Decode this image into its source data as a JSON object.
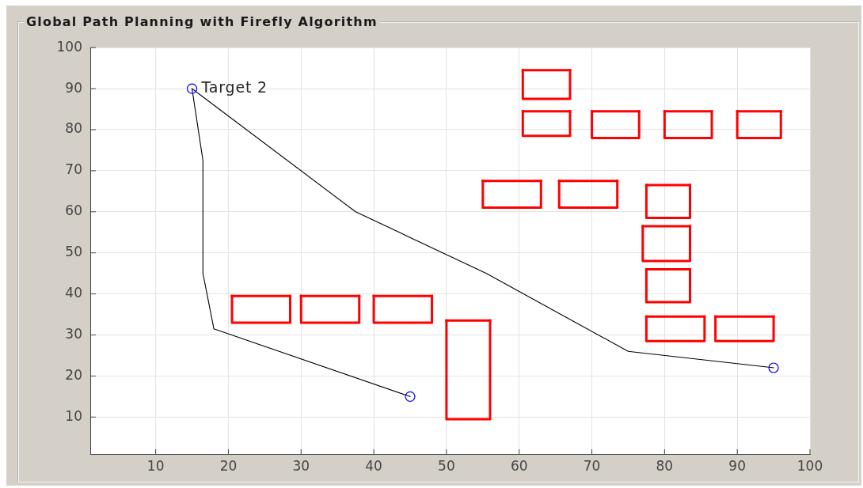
{
  "chart_data": {
    "type": "line",
    "title": "Global Path Planning with Firefly Algorithm",
    "xlim": [
      1,
      100
    ],
    "xticks": [
      10,
      20,
      30,
      40,
      50,
      60,
      70,
      80,
      90,
      100
    ],
    "ylim": [
      1,
      100
    ],
    "yticks": [
      10,
      20,
      30,
      40,
      50,
      60,
      70,
      80,
      90,
      100
    ],
    "grid": true,
    "annotations": [
      {
        "text": "Target 2",
        "x": 15,
        "y": 90
      }
    ],
    "series": [
      {
        "color": "#ff0000",
        "marker": "none",
        "x": [
          60.5,
          60.5,
          67,
          67
        ],
        "values": [
          94.5,
          87.5,
          87.5,
          94.5
        ]
      },
      {
        "color": "#ff0000",
        "marker": "none",
        "x": [
          60.5,
          67
        ],
        "values": [
          94.5,
          94.5
        ]
      },
      {
        "color": "#ff0000",
        "marker": "none",
        "x": [
          60.5,
          60.5,
          67,
          67
        ],
        "values": [
          84.5,
          78.5,
          78.5,
          84.5
        ]
      },
      {
        "color": "#ff0000",
        "marker": "none",
        "x": [
          60.5,
          67
        ],
        "values": [
          84.5,
          84.5
        ]
      },
      {
        "color": "#ff0000",
        "marker": "none",
        "x": [
          70,
          70,
          76.5,
          76.5
        ],
        "values": [
          84.5,
          78,
          78,
          84.5
        ]
      },
      {
        "color": "#ff0000",
        "marker": "none",
        "x": [
          70,
          76.5
        ],
        "values": [
          84.5,
          84.5
        ]
      },
      {
        "color": "#ff0000",
        "marker": "none",
        "x": [
          80,
          80,
          86.5,
          86.5
        ],
        "values": [
          84.5,
          78,
          78,
          84.5
        ]
      },
      {
        "color": "#ff0000",
        "marker": "none",
        "x": [
          80,
          86.5
        ],
        "values": [
          84.5,
          84.5
        ]
      },
      {
        "color": "#ff0000",
        "marker": "none",
        "x": [
          90,
          90,
          96,
          96
        ],
        "values": [
          84.5,
          78,
          78,
          84.5
        ]
      },
      {
        "color": "#ff0000",
        "marker": "none",
        "x": [
          90,
          96
        ],
        "values": [
          84.5,
          84.5
        ]
      },
      {
        "color": "#ff0000",
        "marker": "none",
        "x": [
          55,
          55,
          63,
          63
        ],
        "values": [
          67.5,
          61,
          61,
          67.5
        ]
      },
      {
        "color": "#ff0000",
        "marker": "none",
        "x": [
          55,
          63
        ],
        "values": [
          67.5,
          67.5
        ]
      },
      {
        "color": "#ff0000",
        "marker": "none",
        "x": [
          65.5,
          65.5,
          73.5,
          73.5
        ],
        "values": [
          67.5,
          61,
          61,
          67.5
        ]
      },
      {
        "color": "#ff0000",
        "marker": "none",
        "x": [
          65.5,
          73.5
        ],
        "values": [
          67.5,
          67.5
        ]
      },
      {
        "color": "#ff0000",
        "marker": "none",
        "x": [
          77.5,
          77.5,
          83.5,
          83.5
        ],
        "values": [
          66.5,
          58.5,
          58.5,
          66.5
        ]
      },
      {
        "color": "#ff0000",
        "marker": "none",
        "x": [
          77.5,
          83.5
        ],
        "values": [
          66.5,
          66.5
        ]
      },
      {
        "color": "#ff0000",
        "marker": "none",
        "x": [
          77,
          77,
          83.5,
          83.5
        ],
        "values": [
          56.5,
          48,
          48,
          56.5
        ]
      },
      {
        "color": "#ff0000",
        "marker": "none",
        "x": [
          77,
          83.5
        ],
        "values": [
          56.5,
          56.5
        ]
      },
      {
        "color": "#ff0000",
        "marker": "none",
        "x": [
          77.5,
          77.5,
          83.5,
          83.5
        ],
        "values": [
          46,
          38,
          38,
          46
        ]
      },
      {
        "color": "#ff0000",
        "marker": "none",
        "x": [
          77.5,
          83.5
        ],
        "values": [
          46,
          46
        ]
      },
      {
        "color": "#ff0000",
        "marker": "none",
        "x": [
          77.5,
          77.5,
          85.5,
          85.5
        ],
        "values": [
          34.5,
          28.5,
          28.5,
          34.5
        ]
      },
      {
        "color": "#ff0000",
        "marker": "none",
        "x": [
          77.5,
          85.5
        ],
        "values": [
          34.5,
          34.5
        ]
      },
      {
        "color": "#ff0000",
        "marker": "none",
        "x": [
          87,
          87,
          95,
          95
        ],
        "values": [
          34.5,
          28.5,
          28.5,
          34.5
        ]
      },
      {
        "color": "#ff0000",
        "marker": "none",
        "x": [
          87,
          95
        ],
        "values": [
          34.5,
          34.5
        ]
      },
      {
        "color": "#ff0000",
        "marker": "none",
        "x": [
          50,
          50,
          56,
          56
        ],
        "values": [
          33.5,
          9.5,
          9.5,
          33.5
        ]
      },
      {
        "color": "#ff0000",
        "marker": "none",
        "x": [
          50,
          56
        ],
        "values": [
          33.5,
          33.5
        ]
      },
      {
        "color": "#ff0000",
        "marker": "none",
        "x": [
          20.5,
          20.5,
          28.5,
          28.5
        ],
        "values": [
          39.5,
          33,
          33,
          39.5
        ]
      },
      {
        "color": "#ff0000",
        "marker": "none",
        "x": [
          20.5,
          28.5
        ],
        "values": [
          39.5,
          39.5
        ]
      },
      {
        "color": "#ff0000",
        "marker": "none",
        "x": [
          30,
          30,
          38,
          38
        ],
        "values": [
          39.5,
          33,
          33,
          39.5
        ]
      },
      {
        "color": "#ff0000",
        "marker": "none",
        "x": [
          30,
          38
        ],
        "values": [
          39.5,
          39.5
        ]
      },
      {
        "color": "#ff0000",
        "marker": "none",
        "x": [
          40,
          40,
          48,
          48
        ],
        "values": [
          39.5,
          33,
          33,
          39.5
        ]
      },
      {
        "color": "#ff0000",
        "marker": "none",
        "x": [
          40,
          48
        ],
        "values": [
          39.5,
          39.5
        ]
      },
      {
        "color": "#000000",
        "marker": "none",
        "x": [
          15,
          37.5,
          55.5,
          75,
          95
        ],
        "values": [
          90,
          60,
          45,
          26,
          22
        ]
      },
      {
        "color": "#000000",
        "marker": "none",
        "x": [
          15,
          16.5,
          16.5,
          18,
          45
        ],
        "values": [
          90,
          72.5,
          45,
          31.5,
          15
        ]
      },
      {
        "type": "scatter",
        "color": "#0000ff",
        "marker": "circle",
        "x": [
          15,
          95,
          45
        ],
        "values": [
          90,
          22,
          15
        ]
      }
    ]
  }
}
